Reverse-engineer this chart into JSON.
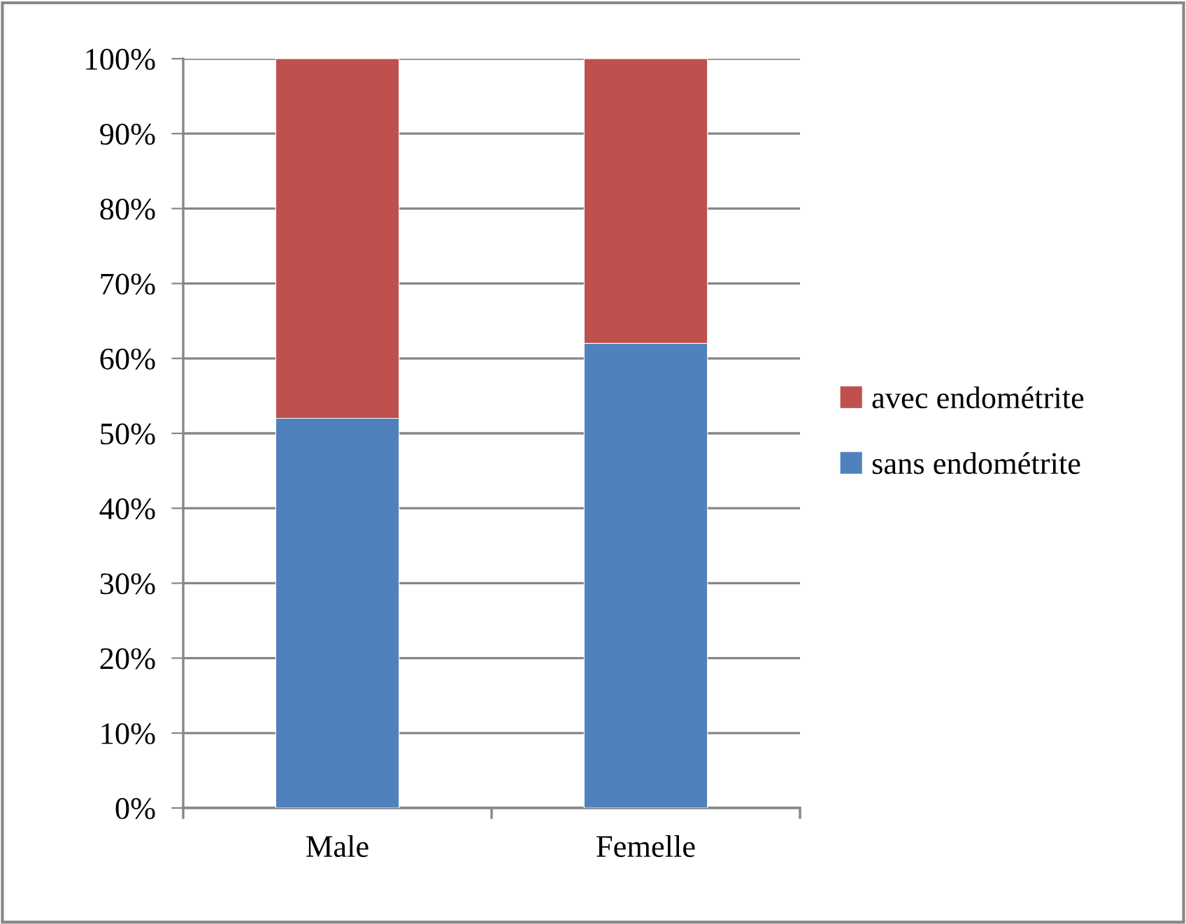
{
  "chart_data": {
    "type": "bar",
    "stacked": true,
    "categories": [
      "Male",
      "Femelle"
    ],
    "series": [
      {
        "name": "sans endométrite",
        "color": "#4f81bd",
        "values": [
          52,
          62
        ]
      },
      {
        "name": "avec endométrite",
        "color": "#c0504d",
        "values": [
          48,
          38
        ]
      }
    ],
    "ylim": [
      0,
      100
    ],
    "yticks": [
      {
        "value": 0,
        "label": "0%"
      },
      {
        "value": 10,
        "label": "10%"
      },
      {
        "value": 20,
        "label": "20%"
      },
      {
        "value": 30,
        "label": "30%"
      },
      {
        "value": 40,
        "label": "40%"
      },
      {
        "value": 50,
        "label": "50%"
      },
      {
        "value": 60,
        "label": "60%"
      },
      {
        "value": 70,
        "label": "70%"
      },
      {
        "value": 80,
        "label": "80%"
      },
      {
        "value": 90,
        "label": "90%"
      },
      {
        "value": 100,
        "label": "100%"
      }
    ],
    "grid": "y",
    "legend": "right"
  }
}
